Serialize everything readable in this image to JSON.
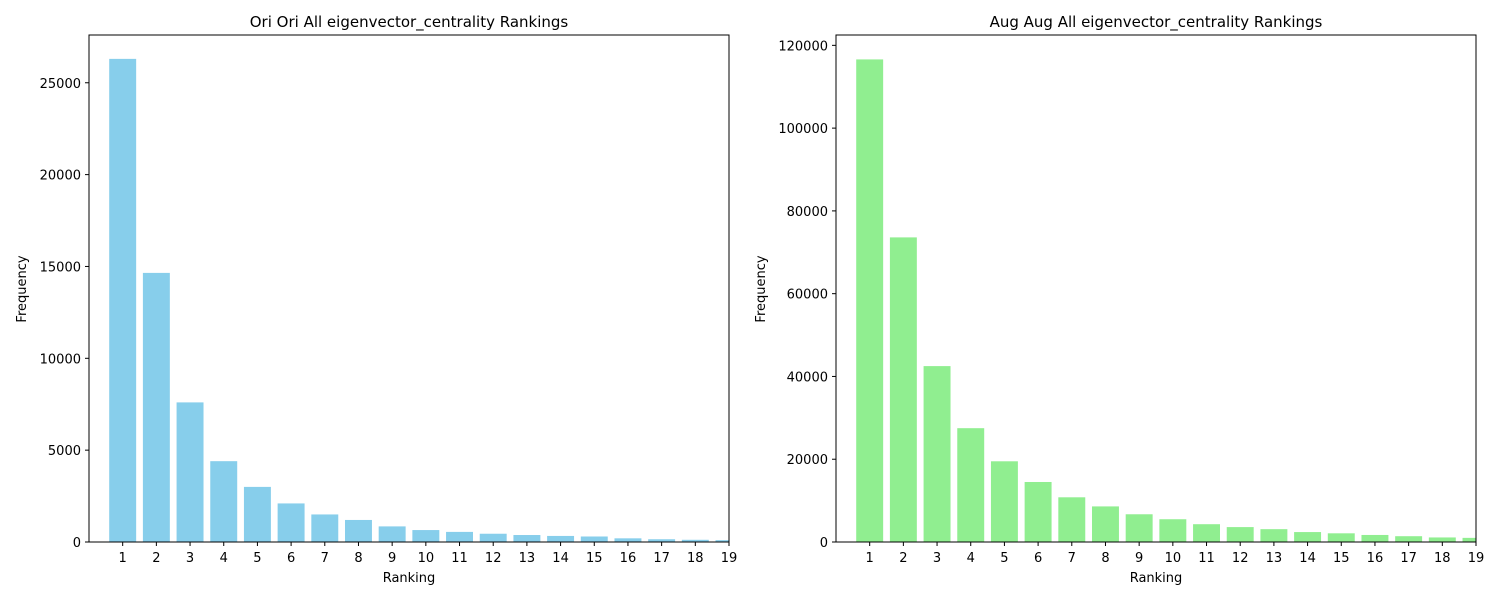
{
  "chart_data": [
    {
      "type": "bar",
      "title": "Ori Ori All eigenvector_centrality Rankings",
      "xlabel": "Ranking",
      "ylabel": "Frequency",
      "color": "#87ceeb",
      "categories": [
        "1",
        "2",
        "3",
        "4",
        "5",
        "6",
        "7",
        "8",
        "9",
        "10",
        "11",
        "12",
        "13",
        "14",
        "15",
        "16",
        "17",
        "18",
        "19"
      ],
      "values": [
        26300,
        14650,
        7600,
        4400,
        3000,
        2100,
        1500,
        1200,
        850,
        650,
        550,
        450,
        380,
        330,
        300,
        200,
        150,
        120,
        100
      ],
      "ylim": [
        0,
        27600
      ],
      "yticks": [
        0,
        5000,
        10000,
        15000,
        20000,
        25000
      ],
      "ytick_labels": [
        "0",
        "5000",
        "10000",
        "15000",
        "20000",
        "25000"
      ],
      "xlim": [
        0.0,
        19.0
      ],
      "grid": false,
      "legend": "none"
    },
    {
      "type": "bar",
      "title": "Aug Aug All eigenvector_centrality Rankings",
      "xlabel": "Ranking",
      "ylabel": "Frequency",
      "color": "#90ee90",
      "categories": [
        "1",
        "2",
        "3",
        "4",
        "5",
        "6",
        "7",
        "8",
        "9",
        "10",
        "11",
        "12",
        "13",
        "14",
        "15",
        "16",
        "17",
        "18",
        "19"
      ],
      "values": [
        116600,
        73600,
        42500,
        27500,
        19500,
        14500,
        10800,
        8600,
        6700,
        5500,
        4300,
        3600,
        3100,
        2400,
        2100,
        1700,
        1400,
        1100,
        1000
      ],
      "ylim": [
        0,
        122500
      ],
      "yticks": [
        0,
        20000,
        40000,
        60000,
        80000,
        100000,
        120000
      ],
      "ytick_labels": [
        "0",
        "20000",
        "40000",
        "60000",
        "80000",
        "100000",
        "120000"
      ],
      "xlim": [
        0.0,
        19.0
      ],
      "grid": false,
      "legend": "none"
    }
  ]
}
